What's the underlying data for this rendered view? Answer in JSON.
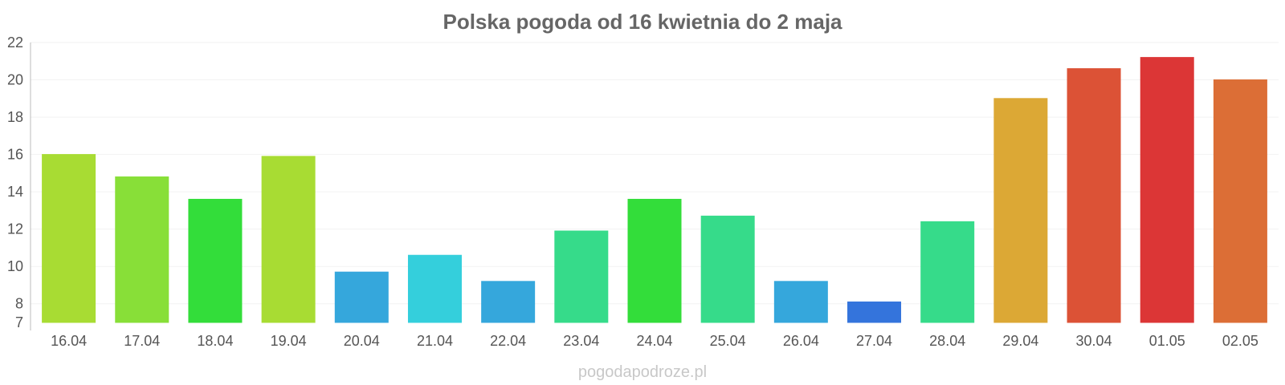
{
  "chart_data": {
    "type": "bar",
    "title": "Polska pogoda od 16 kwietnia do 2 maja",
    "xlabel": "",
    "ylabel": "",
    "ylim": [
      7,
      22
    ],
    "yticks": [
      7,
      8,
      10,
      12,
      14,
      16,
      18,
      20,
      22
    ],
    "grid": true,
    "categories": [
      "16.04",
      "17.04",
      "18.04",
      "19.04",
      "20.04",
      "21.04",
      "22.04",
      "23.04",
      "24.04",
      "25.04",
      "26.04",
      "27.04",
      "28.04",
      "29.04",
      "30.04",
      "01.05",
      "02.05"
    ],
    "values": [
      16.0,
      14.8,
      13.6,
      15.9,
      9.7,
      10.6,
      9.2,
      11.9,
      13.6,
      12.7,
      9.2,
      8.1,
      12.4,
      19.0,
      20.6,
      21.2,
      20.0
    ],
    "colors": [
      "#a8dc33",
      "#88df38",
      "#33dd3a",
      "#a8dc33",
      "#35a7dc",
      "#34cfdc",
      "#35a7dc",
      "#36db8a",
      "#33dd3a",
      "#36db8a",
      "#35a7dc",
      "#3474dc",
      "#36db8a",
      "#dca835",
      "#dc5236",
      "#dc3636",
      "#dc6e36"
    ]
  },
  "credit": "pogodapodroze.pl"
}
